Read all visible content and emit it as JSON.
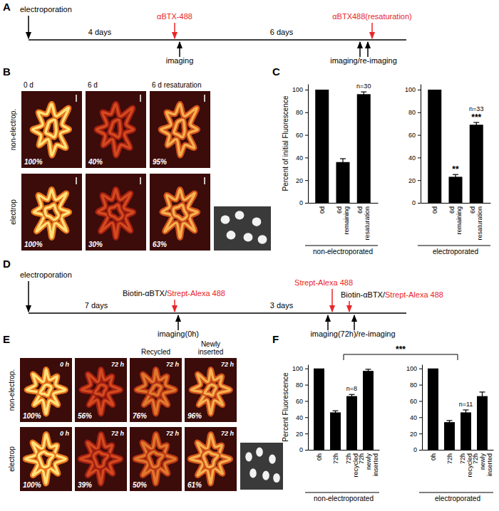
{
  "panel_labels": [
    "A",
    "B",
    "C",
    "D",
    "E",
    "F"
  ],
  "panel_a": {
    "events": [
      {
        "parts": [
          {
            "text": "electroporation",
            "color": "#000000"
          }
        ]
      },
      {
        "parts": [
          {
            "text": "αBTX-488",
            "color": "#e8262a"
          }
        ]
      },
      {
        "parts": [
          {
            "text": "αBTX488(resaturation)",
            "color": "#e8262a"
          }
        ]
      }
    ],
    "intervals": [
      "4 days",
      "6 days"
    ],
    "imaging": [
      "imaging",
      "imaging/re-imaging"
    ]
  },
  "panel_b": {
    "columns": [
      "0 d",
      "6 d",
      "6 d resaturation"
    ],
    "rows": [
      {
        "label": "non-electrop.",
        "percents": [
          "100%",
          "40%",
          "95%"
        ]
      },
      {
        "label": "electrop",
        "percents": [
          "100%",
          "30%",
          "63%"
        ]
      }
    ]
  },
  "chart_data": [
    {
      "type": "bar",
      "ylabel": "Percent of initial Fluorescence",
      "xlabel": "non-electroporated",
      "annotations": [
        "n=30"
      ],
      "categories": [
        "0d",
        "6d remaining",
        "6d resaturation"
      ],
      "values": [
        100,
        36,
        96
      ],
      "errors": [
        null,
        3,
        2
      ],
      "significance": [
        null,
        null,
        null
      ],
      "ylim": [
        0,
        105
      ],
      "yticks": [
        0,
        20,
        40,
        60,
        80,
        100
      ],
      "color": "#000000"
    },
    {
      "type": "bar",
      "xlabel": "electroporated",
      "annotations": [
        "n=33"
      ],
      "categories": [
        "0d",
        "6d remaining",
        "6d resaturation"
      ],
      "values": [
        100,
        23,
        69
      ],
      "errors": [
        null,
        2,
        2
      ],
      "significance": [
        null,
        "**",
        "***"
      ],
      "ylim": [
        0,
        105
      ],
      "yticks": [
        0,
        20,
        40,
        60,
        80,
        100
      ],
      "color": "#000000"
    },
    {
      "type": "bar",
      "ylabel": "Percent Fluorescence",
      "xlabel": "non-electroporated",
      "annotations": [
        "n=8"
      ],
      "categories": [
        "0h",
        "72h",
        "72h recycled",
        "72h newly inserted"
      ],
      "values": [
        100,
        46,
        66,
        97
      ],
      "errors": [
        null,
        2,
        2,
        2
      ],
      "significance": [
        null,
        null,
        null,
        null
      ],
      "ylim": [
        0,
        105
      ],
      "yticks": [
        0,
        20,
        40,
        60,
        80,
        100
      ],
      "color": "#000000"
    },
    {
      "type": "bar",
      "xlabel": "electroporated",
      "annotations": [
        "n=11"
      ],
      "categories": [
        "0h",
        "72h",
        "72h recycled",
        "72h newly inserted"
      ],
      "values": [
        100,
        34,
        46,
        66
      ],
      "errors": [
        null,
        2,
        3,
        5
      ],
      "significance": [
        null,
        null,
        null,
        null
      ],
      "ylim": [
        0,
        105
      ],
      "yticks": [
        0,
        20,
        40,
        60,
        80,
        100
      ],
      "color": "#000000"
    }
  ],
  "panel_d": {
    "events": [
      {
        "parts": [
          {
            "text": "electroporation",
            "color": "#000000"
          }
        ]
      },
      {
        "parts": [
          {
            "text": "Biotin-αBTX/",
            "color": "#000000"
          },
          {
            "text": "Strept-Alexa 488",
            "color": "#e8262a"
          }
        ]
      },
      {
        "parts": [
          {
            "text": "Strept-Alexa 488",
            "color": "#e8262a"
          }
        ]
      },
      {
        "parts": [
          {
            "text": "Biotin-αBTX/",
            "color": "#000000"
          },
          {
            "text": "Strept-Alexa 488",
            "color": "#e8262a"
          }
        ]
      }
    ],
    "intervals": [
      "7 days",
      "3 days"
    ],
    "imaging": [
      "imaging(0h)",
      "imaging(72h)/re-imaging"
    ]
  },
  "panel_e": {
    "columns": [
      null,
      null,
      "Recycled",
      "Newly inserted"
    ],
    "rows": [
      {
        "label": "non-electrop.",
        "times": [
          "0 h",
          "72 h",
          "72 h",
          "72 h"
        ],
        "percents": [
          "100%",
          "56%",
          "76%",
          "96%"
        ]
      },
      {
        "label": "electrop",
        "times": [
          "0 h",
          "72 h",
          "72 h",
          "72 h"
        ],
        "percents": [
          "100%",
          "39%",
          "50%",
          "61%"
        ]
      }
    ]
  },
  "panel_f": {
    "comparison": "***"
  }
}
